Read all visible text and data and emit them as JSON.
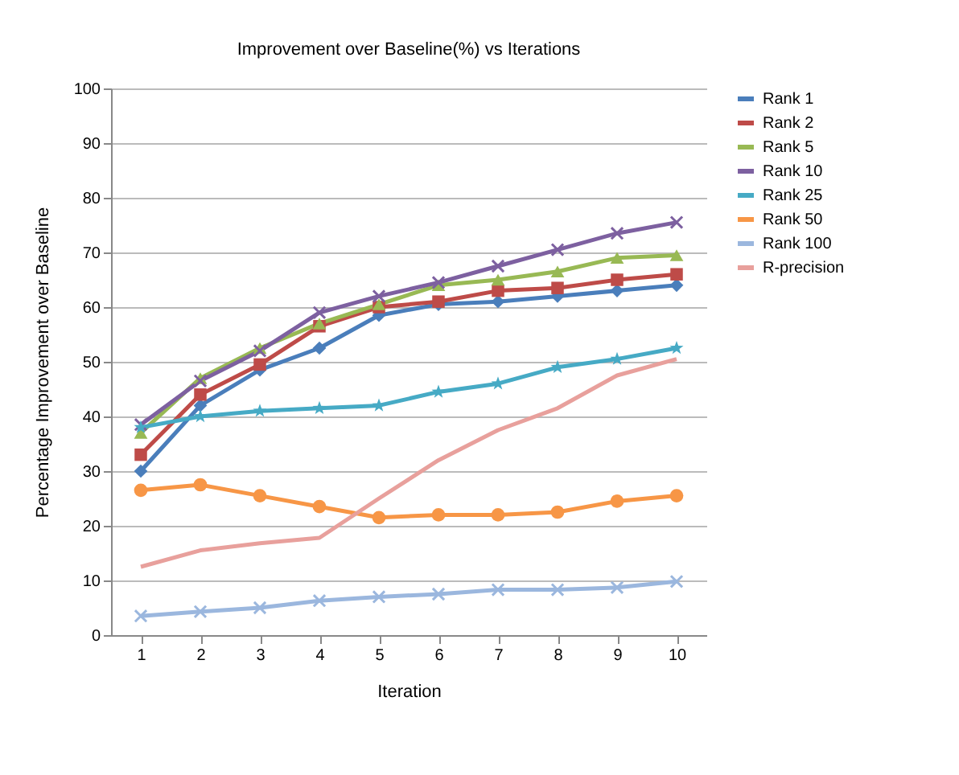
{
  "chart_data": {
    "type": "line",
    "title": "Improvement over Baseline(%) vs Iterations",
    "xlabel": "Iteration",
    "ylabel": "Percentage Improvement over Baseline",
    "categories": [
      "1",
      "2",
      "3",
      "4",
      "5",
      "6",
      "7",
      "8",
      "9",
      "10"
    ],
    "series": [
      {
        "name": "Rank 1",
        "color": "#4a7ebb",
        "marker": "diamond",
        "values": [
          30,
          42,
          48.5,
          52.5,
          58.5,
          60.5,
          61,
          62,
          63,
          64
        ]
      },
      {
        "name": "Rank 2",
        "color": "#be4b48",
        "marker": "square",
        "values": [
          33,
          44,
          49.5,
          56.5,
          60,
          61,
          63,
          63.5,
          65,
          66
        ]
      },
      {
        "name": "Rank 5",
        "color": "#98b954",
        "marker": "triangle",
        "values": [
          37,
          47,
          52.5,
          57,
          60.5,
          64,
          65,
          66.5,
          69,
          69.5
        ]
      },
      {
        "name": "Rank 10",
        "color": "#7d60a0",
        "marker": "cross",
        "values": [
          38.5,
          46.5,
          52,
          59,
          62,
          64.5,
          67.5,
          70.5,
          73.5,
          75.5
        ]
      },
      {
        "name": "Rank 25",
        "color": "#46aac5",
        "marker": "star",
        "values": [
          38,
          40,
          41,
          41.5,
          42,
          44.5,
          46,
          49,
          50.5,
          52.5
        ]
      },
      {
        "name": "Rank 50",
        "color": "#f79646",
        "marker": "circle",
        "values": [
          26.5,
          27.5,
          25.5,
          23.5,
          21.5,
          22,
          22,
          22.5,
          24.5,
          25.5
        ]
      },
      {
        "name": "Rank 100",
        "color": "#9bb7de",
        "marker": "cross",
        "values": [
          3.5,
          4.3,
          5,
          6.3,
          7,
          7.5,
          8.3,
          8.3,
          8.7,
          9.8
        ]
      },
      {
        "name": "R-precision",
        "color": "#e8a09c",
        "marker": "none",
        "values": [
          12.5,
          15.5,
          16.8,
          17.8,
          25,
          32,
          37.5,
          41.5,
          47.5,
          50.5
        ]
      }
    ],
    "ylim": [
      0,
      100
    ],
    "yticks": [
      0,
      10,
      20,
      30,
      40,
      50,
      60,
      70,
      80,
      90,
      100
    ],
    "grid": "y",
    "legend": "right",
    "line_style": "solid"
  }
}
